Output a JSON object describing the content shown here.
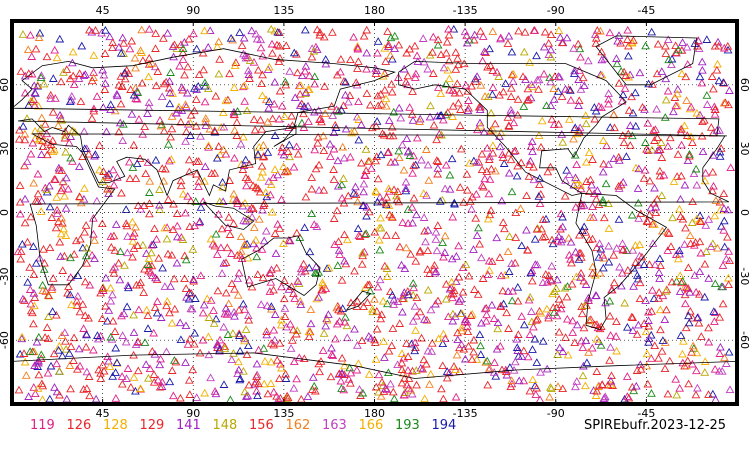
{
  "map": {
    "projection": "cylindrical-equidistant",
    "center_longitude": 180,
    "lon_range": [
      0,
      360
    ],
    "lat_range": [
      -90,
      90
    ],
    "grid": true,
    "grid_spacing_degrees": 45,
    "lat_grid_spacing_degrees": 30,
    "top_tick_labels": [
      "45",
      "90",
      "135",
      "180",
      "-135",
      "-90",
      "-45"
    ],
    "bottom_tick_labels": [
      "45",
      "90",
      "135",
      "180",
      "-135",
      "-90",
      "-45"
    ],
    "left_tick_labels": [
      "60",
      "30",
      "0",
      "-30",
      "-60"
    ],
    "right_tick_labels": [
      "60",
      "30",
      "0",
      "-30",
      "-60"
    ],
    "marker": "open-triangle"
  },
  "legend": {
    "items": [
      {
        "label": "119",
        "color": "#e0218a"
      },
      {
        "label": "126",
        "color": "#e8262a"
      },
      {
        "label": "128",
        "color": "#f2b000"
      },
      {
        "label": "129",
        "color": "#e8262a"
      },
      {
        "label": "141",
        "color": "#a020c0"
      },
      {
        "label": "148",
        "color": "#b8a800"
      },
      {
        "label": "156",
        "color": "#e8262a"
      },
      {
        "label": "162",
        "color": "#f08020"
      },
      {
        "label": "163",
        "color": "#c040c0"
      },
      {
        "label": "166",
        "color": "#f2b000"
      },
      {
        "label": "193",
        "color": "#1a8a1a"
      },
      {
        "label": "194",
        "color": "#1a1aa8"
      }
    ]
  },
  "caption": "SPIREbufr.2023-12-25"
}
